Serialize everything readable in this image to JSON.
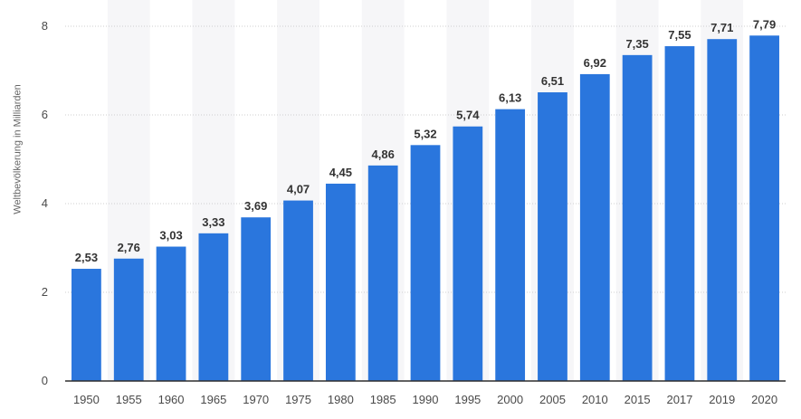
{
  "chart_data": {
    "type": "bar",
    "categories": [
      "1950",
      "1955",
      "1960",
      "1965",
      "1970",
      "1975",
      "1980",
      "1985",
      "1990",
      "1995",
      "2000",
      "2005",
      "2010",
      "2015",
      "2017",
      "2019",
      "2020"
    ],
    "values": [
      2.53,
      2.76,
      3.03,
      3.33,
      3.69,
      4.07,
      4.45,
      4.86,
      5.32,
      5.74,
      6.13,
      6.51,
      6.92,
      7.35,
      7.55,
      7.71,
      7.79
    ],
    "value_labels": [
      "2,53",
      "2,76",
      "3,03",
      "3,33",
      "3,69",
      "4,07",
      "4,45",
      "4,86",
      "5,32",
      "5,74",
      "6,13",
      "6,51",
      "6,92",
      "7,35",
      "7,55",
      "7,71",
      "7,79"
    ],
    "ylabel": "Weltbevölkerung in Milliarden",
    "ylim": [
      0,
      8
    ],
    "yticks": [
      0,
      2,
      4,
      6,
      8
    ],
    "grid": true,
    "colors": {
      "bar": "#2a76dd",
      "band": "#f6f6f8",
      "grid": "#cfcfcf",
      "axis": "#2f2f2f",
      "tick_text": "#4a4a4a",
      "value_text": "#333333"
    }
  }
}
